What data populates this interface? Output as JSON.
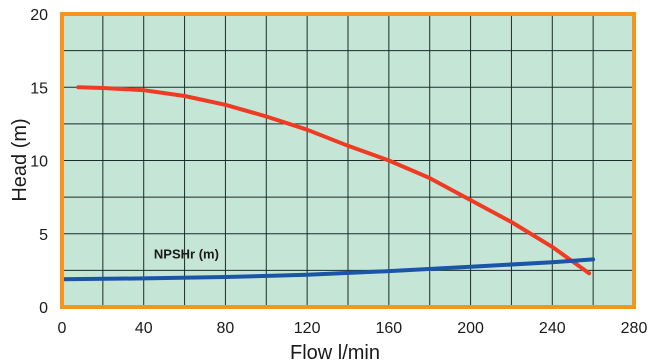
{
  "chart_data": {
    "type": "line",
    "xlabel": "Flow l/min",
    "ylabel": "Head (m)",
    "xlim": [
      0,
      280
    ],
    "ylim": [
      0,
      20
    ],
    "xticks": [
      0,
      40,
      80,
      120,
      160,
      200,
      240,
      280
    ],
    "xtick_labels": [
      "0",
      "40",
      "80",
      "120",
      "160",
      "200",
      "240",
      "280"
    ],
    "yticks": [
      0,
      5,
      10,
      15,
      20
    ],
    "ytick_labels": [
      "0",
      "5",
      "10",
      "15",
      "20"
    ],
    "grid": true,
    "grid_x_step": 20,
    "grid_y_step": 2.5,
    "series": [
      {
        "name": "",
        "color": "#ef3b23",
        "x": [
          8,
          20,
          40,
          60,
          80,
          100,
          120,
          140,
          160,
          180,
          200,
          220,
          240,
          258
        ],
        "y": [
          15.0,
          14.95,
          14.8,
          14.4,
          13.8,
          13.0,
          12.1,
          11.0,
          10.0,
          8.8,
          7.3,
          5.8,
          4.1,
          2.3
        ]
      },
      {
        "name": "NPSHr (m)",
        "color": "#1a55a6",
        "x": [
          0,
          40,
          80,
          120,
          160,
          200,
          240,
          260
        ],
        "y": [
          1.9,
          1.95,
          2.05,
          2.2,
          2.45,
          2.75,
          3.05,
          3.25
        ]
      }
    ],
    "annotations": [
      {
        "text": "NPSHr (m)",
        "x": 45,
        "y": 3.3
      }
    ],
    "colors": {
      "plot_background": "#c5e6d6",
      "frame": "#f7941d",
      "grid": "#1c2b2b"
    }
  }
}
